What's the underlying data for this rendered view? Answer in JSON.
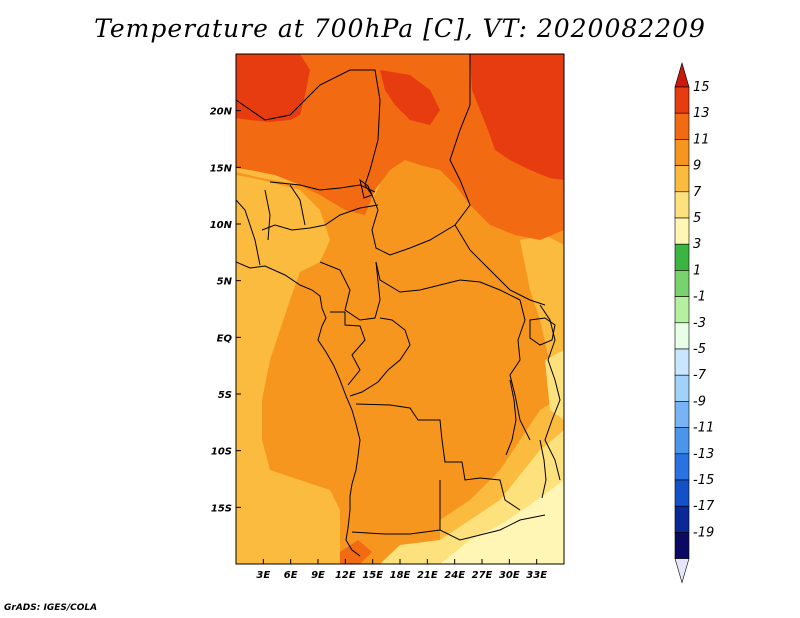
{
  "title": "Temperature at 700hPa [C], VT: 2020082209",
  "credit": "GrADS: IGES/COLA",
  "map": {
    "lon_range": [
      0,
      36
    ],
    "lat_range": [
      -20,
      25
    ],
    "lat_ticks": [
      {
        "value": 20,
        "label": "20N"
      },
      {
        "value": 15,
        "label": "15N"
      },
      {
        "value": 10,
        "label": "10N"
      },
      {
        "value": 5,
        "label": "5N"
      },
      {
        "value": 0,
        "label": "EQ"
      },
      {
        "value": -5,
        "label": "5S"
      },
      {
        "value": -10,
        "label": "10S"
      },
      {
        "value": -15,
        "label": "15S"
      }
    ],
    "lon_ticks": [
      {
        "value": 3,
        "label": "3E"
      },
      {
        "value": 6,
        "label": "6E"
      },
      {
        "value": 9,
        "label": "9E"
      },
      {
        "value": 12,
        "label": "12E"
      },
      {
        "value": 15,
        "label": "15E"
      },
      {
        "value": 18,
        "label": "18E"
      },
      {
        "value": 21,
        "label": "21E"
      },
      {
        "value": 24,
        "label": "24E"
      },
      {
        "value": 27,
        "label": "27E"
      },
      {
        "value": 30,
        "label": "30E"
      },
      {
        "value": 33,
        "label": "33E"
      }
    ]
  },
  "colorbar": {
    "levels": [
      "15",
      "13",
      "11",
      "9",
      "7",
      "5",
      "3",
      "1",
      "-1",
      "-3",
      "-5",
      "-7",
      "-9",
      "-11",
      "-13",
      "-15",
      "-17",
      "-19"
    ],
    "colors": [
      "#e73c0f",
      "#f26a12",
      "#f7961e",
      "#fbbb3e",
      "#fde17c",
      "#fff5b5",
      "#3cb441",
      "#78d26e",
      "#b4f0a0",
      "#e6ffe6",
      "#c8e6ff",
      "#a0d2fa",
      "#78b4f5",
      "#4b96eb",
      "#2873e1",
      "#1450c8",
      "#0a2896",
      "#0a0a64"
    ],
    "top_color": "#c8190a",
    "bottom_color": "#e6e6fa"
  },
  "colors": {
    "warm_13": "#e73c0f",
    "warm_11": "#f26a12",
    "warm_9": "#f7961e",
    "warm_7": "#fbbb3e",
    "warm_5": "#fde17c",
    "warm_3": "#fff5b5",
    "border": "#000000"
  }
}
